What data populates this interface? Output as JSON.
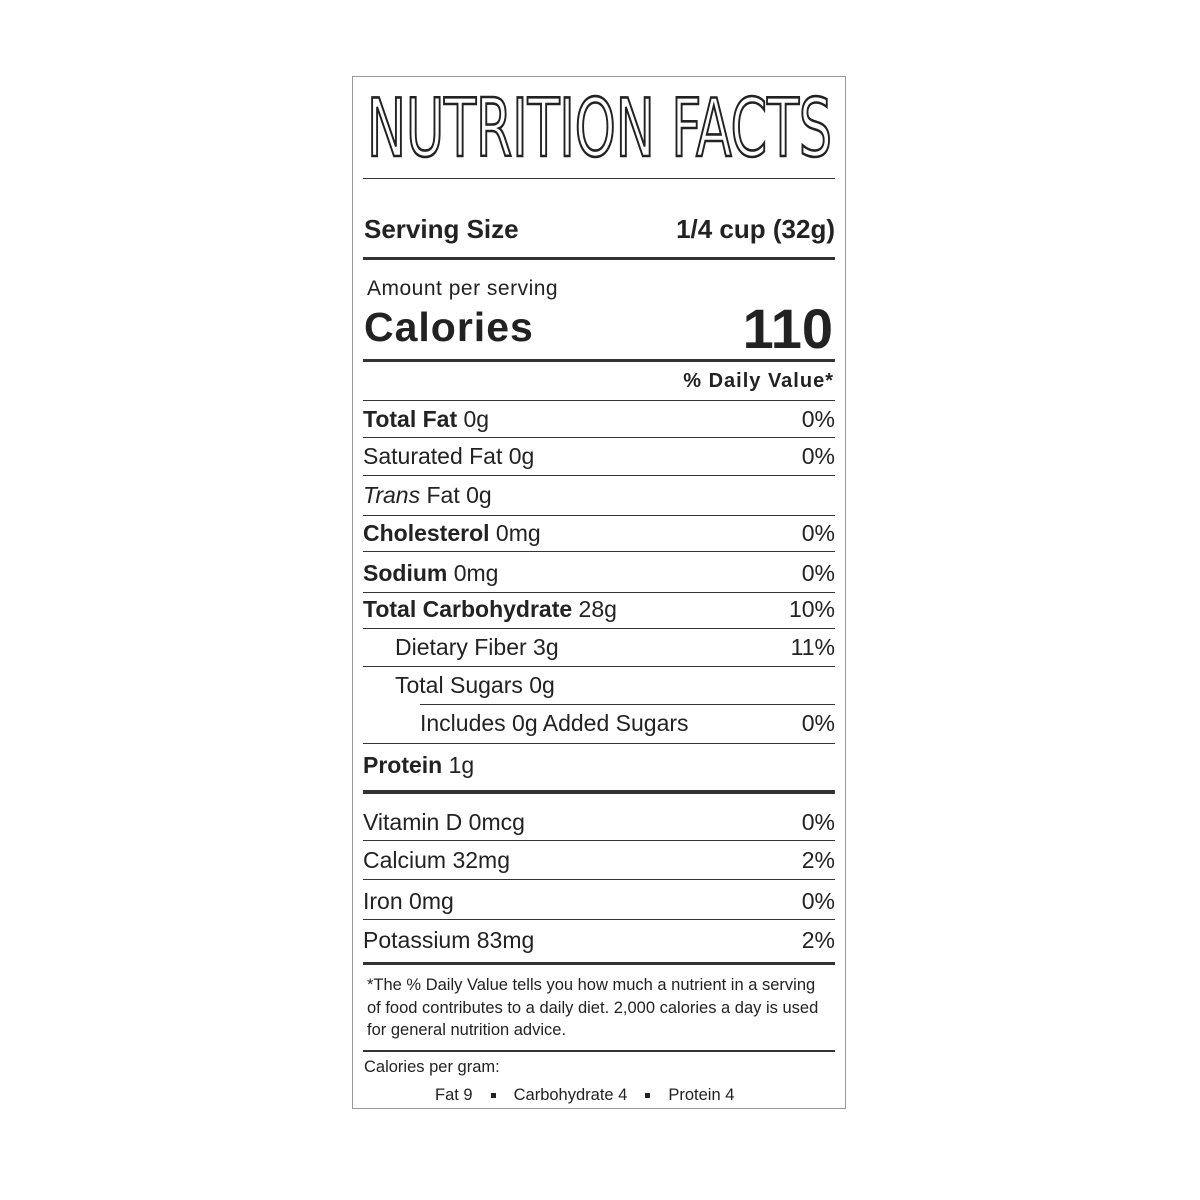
{
  "title": "NUTRITION FACTS",
  "serving": {
    "label": "Serving Size",
    "value": "1/4 cup (32g)"
  },
  "calories": {
    "note": "Amount per serving",
    "label": "Calories",
    "value": "110"
  },
  "daily_value_header": "% Daily Value*",
  "nutrients": [
    {
      "name": "Total Fat",
      "amount": "0g",
      "dv": "0%"
    },
    {
      "name": "Saturated Fat",
      "amount": "0g",
      "dv": "0%"
    },
    {
      "italic": "Trans",
      "name": "Fat",
      "amount": "0g"
    },
    {
      "name": "Cholesterol",
      "amount": "0mg",
      "dv": "0%"
    },
    {
      "name": "Sodium",
      "amount": "0mg",
      "dv": "0%"
    },
    {
      "name": "Total Carbohydrate",
      "amount": "28g",
      "dv": "10%"
    },
    {
      "name": "Dietary Fiber",
      "amount": "3g",
      "dv": "11%"
    },
    {
      "name": "Total Sugars",
      "amount": "0g"
    },
    {
      "name": "Includes 0g Added Sugars",
      "dv": "0%"
    },
    {
      "name": "Protein",
      "amount": "1g"
    }
  ],
  "vitamins": [
    {
      "name": "Vitamin D",
      "amount": "0mcg",
      "dv": "0%"
    },
    {
      "name": "Calcium",
      "amount": "32mg",
      "dv": "2%"
    },
    {
      "name": "Iron",
      "amount": "0mg",
      "dv": "0%"
    },
    {
      "name": "Potassium",
      "amount": "83mg",
      "dv": "2%"
    }
  ],
  "footnote": "*The % Daily Value tells you how much a nutrient in a serving of food contributes to a daily diet. 2,000 calories a day is used for general nutrition advice.",
  "calories_per_gram": {
    "label": "Calories per gram:",
    "items": [
      "Fat 9",
      "Carbohydrate 4",
      "Protein 4"
    ]
  }
}
